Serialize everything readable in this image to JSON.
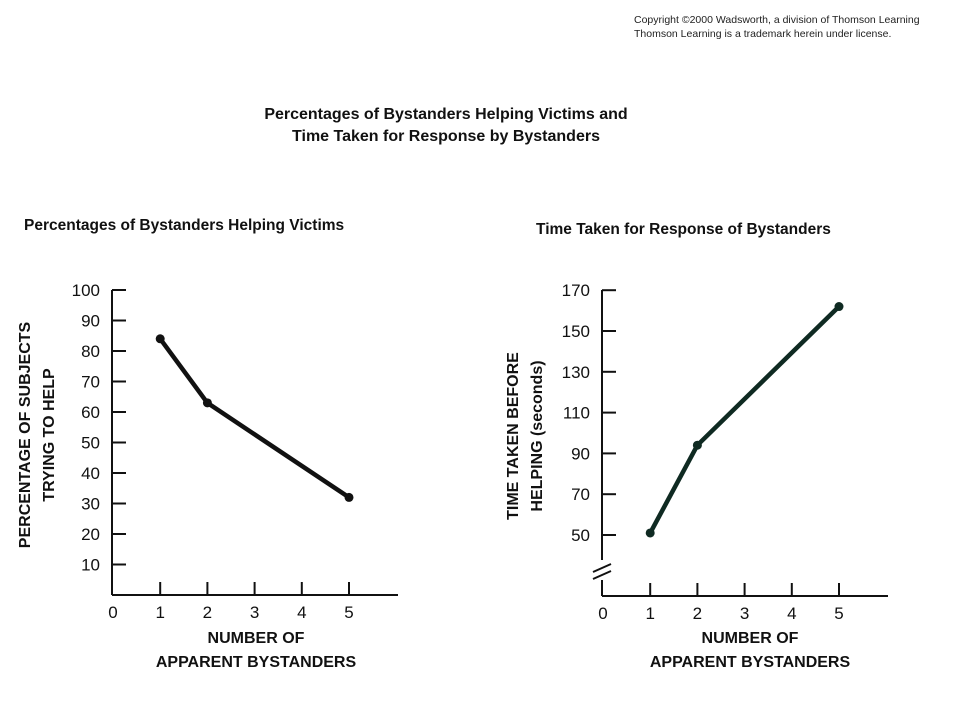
{
  "copyright": {
    "line1": "Copyright ©2000 Wadsworth, a division of Thomson Learning",
    "line2": "Thomson Learning is a trademark herein under license."
  },
  "main_title": {
    "line1": "Percentages of Bystanders Helping Victims and",
    "line2": "Time Taken for Response by Bystanders"
  },
  "colors": {
    "left_line": "#111111",
    "right_line": "#0f2a22",
    "axis": "#111111"
  },
  "chart_data": [
    {
      "type": "line",
      "title": "Percentages of Bystanders Helping Victims",
      "xlabel": [
        "NUMBER OF",
        "APPARENT BYSTANDERS"
      ],
      "ylabel": [
        "PERCENTAGE OF SUBJECTS",
        "TRYING TO HELP"
      ],
      "xlim": [
        0,
        6
      ],
      "ylim": [
        0,
        100
      ],
      "x_ticks": [
        0,
        1,
        2,
        3,
        4,
        5
      ],
      "y_ticks": [
        10,
        20,
        30,
        40,
        50,
        60,
        70,
        80,
        90,
        100
      ],
      "grid": false,
      "series": [
        {
          "x": [
            1,
            2,
            5
          ],
          "y": [
            84,
            63,
            32
          ]
        }
      ]
    },
    {
      "type": "line",
      "title": "Time Taken for Response of Bystanders",
      "xlabel": [
        "NUMBER OF",
        "APPARENT BYSTANDERS"
      ],
      "ylabel": [
        "TIME TAKEN BEFORE",
        "HELPING (seconds)"
      ],
      "xlim": [
        0,
        6
      ],
      "ylim": [
        50,
        170
      ],
      "axis_break": true,
      "x_ticks": [
        0,
        1,
        2,
        3,
        4,
        5
      ],
      "y_ticks": [
        50,
        70,
        90,
        110,
        130,
        150,
        170
      ],
      "grid": false,
      "series": [
        {
          "x": [
            1,
            2,
            5
          ],
          "y": [
            51,
            94,
            162
          ]
        }
      ]
    }
  ]
}
